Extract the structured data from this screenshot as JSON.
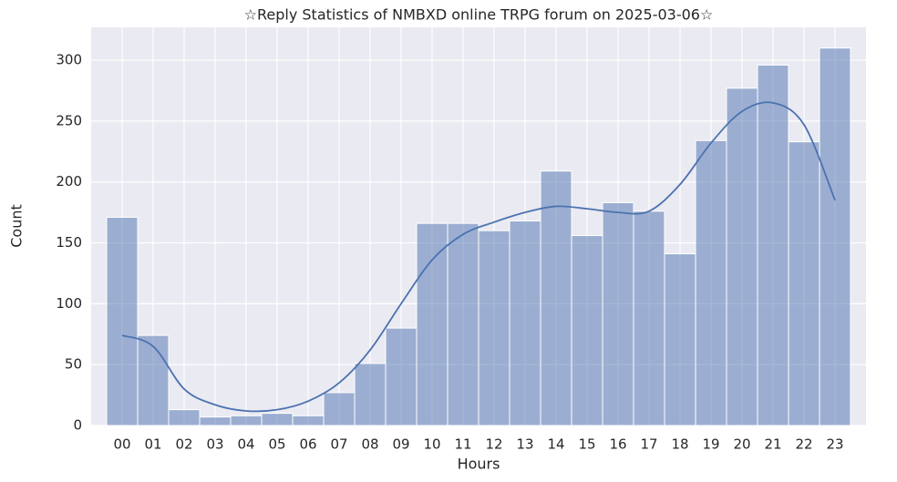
{
  "chart_data": {
    "type": "bar",
    "title": "☆Reply Statistics of NMBXD online TRPG forum on 2025-03-06☆",
    "x_label": "Hours",
    "y_label": "Count",
    "categories": [
      "00",
      "01",
      "02",
      "03",
      "04",
      "05",
      "06",
      "07",
      "08",
      "09",
      "10",
      "11",
      "12",
      "13",
      "14",
      "15",
      "16",
      "17",
      "18",
      "19",
      "20",
      "21",
      "22",
      "23"
    ],
    "values": [
      171,
      74,
      13,
      7,
      8,
      10,
      8,
      27,
      51,
      80,
      166,
      166,
      160,
      168,
      209,
      156,
      183,
      176,
      141,
      234,
      277,
      296,
      233,
      310
    ],
    "color": "#4c72b0",
    "line": {
      "color": "#4c72b0",
      "values": [
        74,
        65,
        30,
        17,
        12,
        13,
        20,
        35,
        62,
        100,
        136,
        157,
        167,
        175,
        180,
        178,
        175,
        176,
        198,
        232,
        258,
        265,
        247,
        185
      ]
    },
    "ylim": [
      0,
      327
    ],
    "yticks": [
      0,
      50,
      100,
      150,
      200,
      250,
      300
    ],
    "grid": true
  }
}
